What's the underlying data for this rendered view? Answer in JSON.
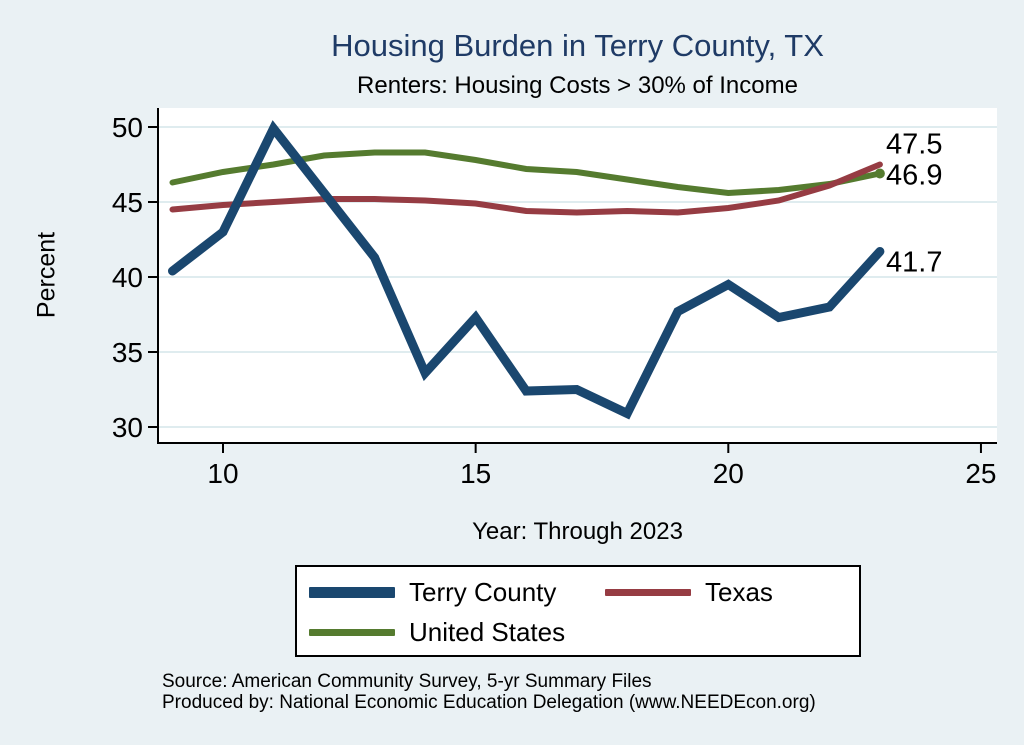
{
  "title": "Housing Burden in Terry County, TX",
  "subtitle": "Renters: Housing Costs > 30% of Income",
  "colors": {
    "background": "#eaf1f4",
    "plot_background": "#ffffff",
    "gridline": "#dfecef",
    "axis": "#000000",
    "title_text": "#1f3b66",
    "terry_county": "#1a476f",
    "texas": "#963c43",
    "united_states": "#557b2f"
  },
  "chart_data": {
    "type": "line",
    "title": "Housing Burden in Terry County, TX",
    "subtitle": "Renters: Housing Costs > 30% of Income",
    "xlabel": "Year: Through 2023",
    "ylabel": "Percent",
    "x": [
      9,
      10,
      11,
      12,
      13,
      14,
      15,
      16,
      17,
      18,
      19,
      20,
      21,
      22,
      23
    ],
    "x_ticks": [
      10,
      15,
      20,
      25
    ],
    "y_ticks": [
      50,
      45,
      40,
      35,
      30
    ],
    "xlim": [
      8.7,
      25.3
    ],
    "ylim": [
      28.9,
      51.2
    ],
    "grid": true,
    "legend_position": "bottom",
    "series": [
      {
        "name": "Terry County",
        "color": "#1a476f",
        "line_width": 9,
        "end_label": "41.7",
        "end_marker": false,
        "values": [
          40.4,
          43.0,
          49.9,
          45.6,
          41.3,
          33.6,
          37.3,
          32.4,
          32.5,
          30.9,
          37.7,
          39.5,
          37.3,
          38.0,
          41.7
        ]
      },
      {
        "name": "Texas",
        "color": "#963c43",
        "line_width": 6,
        "end_label": "47.5",
        "end_marker": false,
        "values": [
          44.5,
          44.8,
          45.0,
          45.2,
          45.2,
          45.1,
          44.9,
          44.4,
          44.3,
          44.4,
          44.3,
          44.6,
          45.1,
          46.1,
          47.5
        ]
      },
      {
        "name": "United States",
        "color": "#557b2f",
        "line_width": 6,
        "end_label": "46.9",
        "end_marker": true,
        "values": [
          46.3,
          47.0,
          47.5,
          48.1,
          48.3,
          48.3,
          47.8,
          47.2,
          47.0,
          46.5,
          46.0,
          45.6,
          45.8,
          46.2,
          46.9
        ]
      }
    ]
  },
  "legend": {
    "items": [
      {
        "label": "Terry County",
        "color": "#1a476f",
        "swatch_height": 11
      },
      {
        "label": "Texas",
        "color": "#963c43",
        "swatch_height": 7
      },
      {
        "label": "United States",
        "color": "#557b2f",
        "swatch_height": 7
      }
    ]
  },
  "footer": {
    "source_line": "Source: American Community Survey, 5-yr Summary Files",
    "produced_line": "Produced by: National Economic Education Delegation (www.NEEDEcon.org)"
  }
}
